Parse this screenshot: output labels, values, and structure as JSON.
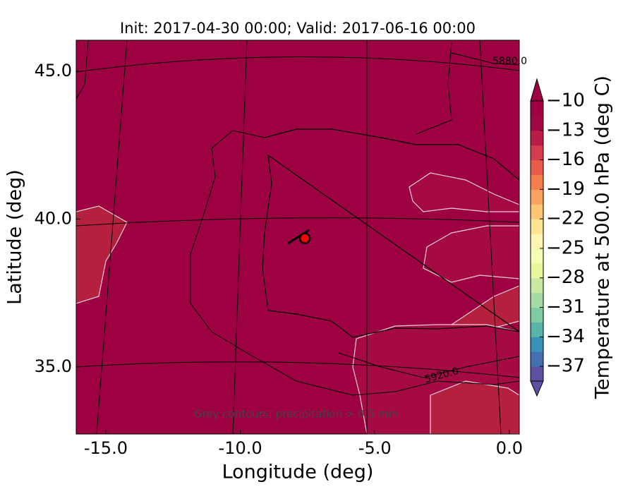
{
  "chart_data": {
    "type": "map",
    "title": "Init: 2017-04-30 00:00; Valid: 2017-06-16 00:00",
    "x_label": "Longitude (deg)",
    "y_label": "Latitude (deg)",
    "xlim": [
      -16.1,
      0.37
    ],
    "ylim": [
      32.73,
      46.05
    ],
    "xticks": [
      {
        "value": -15,
        "label": "-15.0"
      },
      {
        "value": -10,
        "label": "-10.0"
      },
      {
        "value": -5,
        "label": "-5.0"
      },
      {
        "value": 0,
        "label": "0.0"
      }
    ],
    "yticks": [
      {
        "value": 35,
        "label": "35.0"
      },
      {
        "value": 40,
        "label": "40.0"
      },
      {
        "value": 45,
        "label": "45.0"
      }
    ],
    "annotation": "Grey contours: precipitation > 0.5 mm",
    "contour_labels": [
      "5880.0",
      "5920.0"
    ],
    "marker": {
      "lon": -7.6,
      "lat": 39.35,
      "color": "#ff0000"
    },
    "background_color": "#9e0142",
    "colorbar": {
      "label": "Temperature at 500.0 hPa (deg C)",
      "clim": [
        -38.5,
        -10
      ],
      "ticks": [
        {
          "value": -10,
          "label": "−10"
        },
        {
          "value": -13,
          "label": "−13"
        },
        {
          "value": -16,
          "label": "−16"
        },
        {
          "value": -19,
          "label": "−19"
        },
        {
          "value": -22,
          "label": "−22"
        },
        {
          "value": -25,
          "label": "−25"
        },
        {
          "value": -28,
          "label": "−28"
        },
        {
          "value": -31,
          "label": "−31"
        },
        {
          "value": -34,
          "label": "−34"
        },
        {
          "value": -37,
          "label": "−37"
        }
      ],
      "colors": [
        "#5e4fa2",
        "#4470b1",
        "#3b92b8",
        "#59b4aa",
        "#7ecba4",
        "#a6dba4",
        "#cae9a0",
        "#e8f69c",
        "#f7fcb3",
        "#fff5ae",
        "#fee391",
        "#fdc574",
        "#fba35e",
        "#f67e4b",
        "#e95c47",
        "#d43d4f",
        "#b91d47",
        "#a20643",
        "#9e0142"
      ]
    }
  }
}
